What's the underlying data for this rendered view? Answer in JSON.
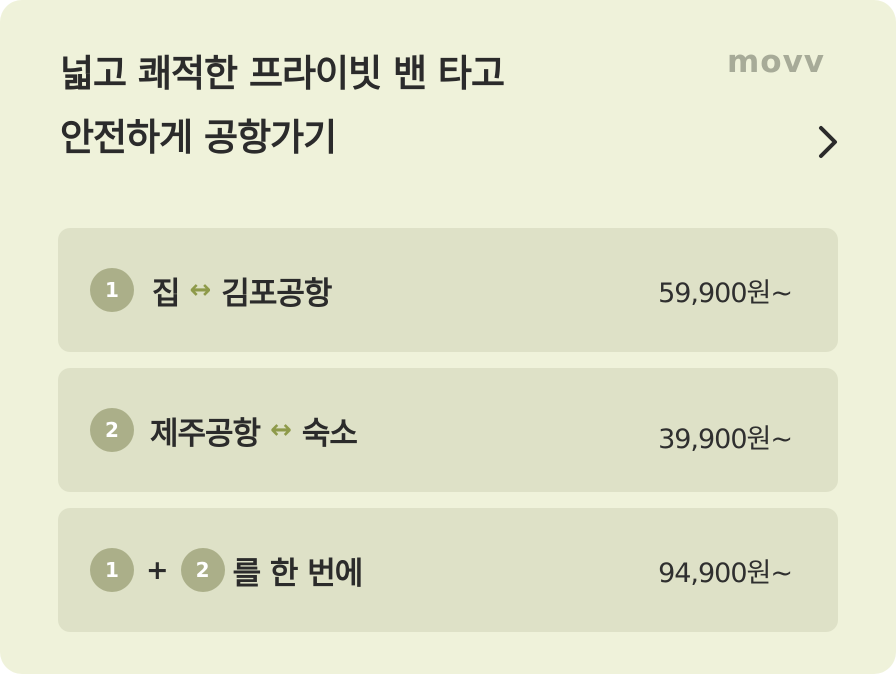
{
  "card": {
    "title_line1": "넓고 쾌적한 프라이빗 밴 타고",
    "title_line2": "안전하게 공항가기",
    "logo": "movv",
    "chevron_icon": "chevron-right-icon"
  },
  "routes": [
    {
      "badges": [
        "1"
      ],
      "from": "집",
      "arrow": "↔",
      "to": "김포공항",
      "price": "59,900원~"
    },
    {
      "badges": [
        "2"
      ],
      "from": "제주공항",
      "arrow": "↔",
      "to": "숙소",
      "price": "39,900원~"
    },
    {
      "badges": [
        "1",
        "2"
      ],
      "plus": "+",
      "suffix": "를 한 번에",
      "price": "94,900원~"
    }
  ],
  "colors": {
    "background": "#EFF2DA",
    "row_background": "#DEE1C7",
    "badge": "#ABAF89",
    "arrow": "#8E9A4A",
    "logo": "#A7AB98"
  }
}
